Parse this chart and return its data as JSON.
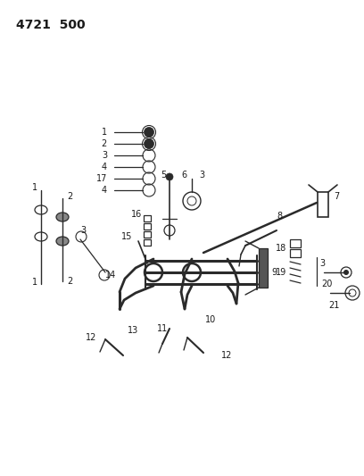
{
  "title": "4721  500",
  "bg_color": "#ffffff",
  "line_color": "#2a2a2a",
  "text_color": "#1a1a1a",
  "fig_width": 4.08,
  "fig_height": 5.33,
  "dpi": 100
}
